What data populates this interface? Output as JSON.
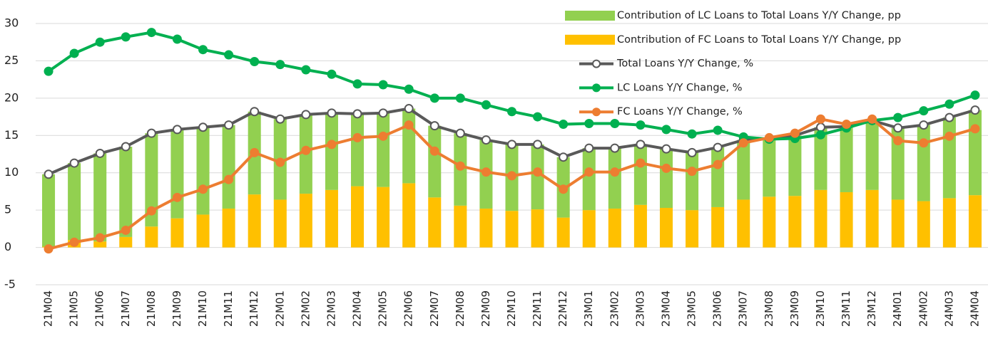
{
  "chart_data": {
    "type": "combo",
    "categories": [
      "21M04",
      "21M05",
      "21M06",
      "21M07",
      "21M08",
      "21M09",
      "21M10",
      "21M11",
      "21M12",
      "22M01",
      "22M02",
      "22M03",
      "22M04",
      "22M05",
      "22M06",
      "22M07",
      "22M08",
      "22M09",
      "22M10",
      "22M11",
      "22M12",
      "23M01",
      "23M02",
      "23M03",
      "23M04",
      "23M05",
      "23M06",
      "23M07",
      "23M08",
      "23M09",
      "23M10",
      "23M11",
      "23M12",
      "24M01",
      "24M02",
      "24M03",
      "24M04"
    ],
    "ylim": [
      -5,
      30
    ],
    "yticks": [
      -5,
      0,
      5,
      10,
      15,
      20,
      25,
      30
    ],
    "grid": true,
    "stacked": true,
    "legend": "top-right",
    "series": [
      {
        "name": "Contribution of LC Loans to Total Loans Y/Y Change, pp",
        "type": "bar",
        "color": "#92d050",
        "values": [
          9.7,
          10.3,
          11.8,
          12.1,
          12.5,
          11.9,
          11.7,
          11.2,
          11.1,
          10.8,
          10.6,
          10.3,
          9.7,
          9.9,
          10.0,
          9.6,
          9.7,
          9.2,
          8.9,
          8.7,
          8.1,
          8.3,
          8.1,
          8.1,
          7.9,
          7.7,
          8.0,
          8.0,
          7.8,
          8.1,
          8.4,
          8.8,
          9.3,
          9.6,
          10.2,
          10.8,
          11.4
        ]
      },
      {
        "name": "Contribution of FC Loans to Total Loans Y/Y Change, pp",
        "type": "bar",
        "color": "#ffc000",
        "values": [
          0.1,
          1.0,
          0.8,
          1.4,
          2.8,
          3.9,
          4.4,
          5.2,
          7.1,
          6.4,
          7.2,
          7.7,
          8.2,
          8.1,
          8.6,
          6.7,
          5.6,
          5.2,
          4.9,
          5.1,
          4.0,
          5.0,
          5.2,
          5.7,
          5.3,
          5.0,
          5.4,
          6.4,
          6.8,
          6.9,
          7.7,
          7.4,
          7.7,
          6.4,
          6.2,
          6.6,
          7.0
        ]
      },
      {
        "name": "Total Loans Y/Y Change, %",
        "type": "line",
        "color": "#595959",
        "marker_fill": "#ffffff",
        "values": [
          9.8,
          11.3,
          12.6,
          13.5,
          15.3,
          15.8,
          16.1,
          16.4,
          18.2,
          17.2,
          17.8,
          18.0,
          17.9,
          18.0,
          18.6,
          16.3,
          15.3,
          14.4,
          13.8,
          13.8,
          12.1,
          13.3,
          13.3,
          13.8,
          13.2,
          12.7,
          13.4,
          14.4,
          14.6,
          15.0,
          16.1,
          16.2,
          17.0,
          16.0,
          16.4,
          17.4,
          18.4
        ]
      },
      {
        "name": "LC Loans Y/Y Change, %",
        "type": "line",
        "color": "#00b050",
        "marker_fill": "#00b050",
        "values": [
          23.6,
          26.0,
          27.5,
          28.2,
          28.8,
          27.9,
          26.5,
          25.8,
          24.9,
          24.5,
          23.8,
          23.2,
          21.9,
          21.8,
          21.2,
          20.0,
          20.0,
          19.1,
          18.2,
          17.5,
          16.5,
          16.6,
          16.6,
          16.4,
          15.8,
          15.2,
          15.7,
          14.8,
          14.5,
          14.6,
          15.1,
          16.0,
          17.0,
          17.4,
          18.3,
          19.2,
          20.4
        ]
      },
      {
        "name": "FC Loans Y/Y Change, %",
        "type": "line",
        "color": "#ed7d31",
        "marker_fill": "#ed7d31",
        "values": [
          -0.2,
          0.7,
          1.3,
          2.3,
          4.9,
          6.7,
          7.8,
          9.1,
          12.7,
          11.4,
          13.0,
          13.8,
          14.7,
          14.9,
          16.4,
          12.9,
          10.9,
          10.1,
          9.6,
          10.1,
          7.8,
          10.1,
          10.1,
          11.3,
          10.6,
          10.2,
          11.1,
          14.0,
          14.7,
          15.3,
          17.2,
          16.5,
          17.2,
          14.3,
          14.0,
          14.9,
          15.9
        ]
      }
    ]
  }
}
